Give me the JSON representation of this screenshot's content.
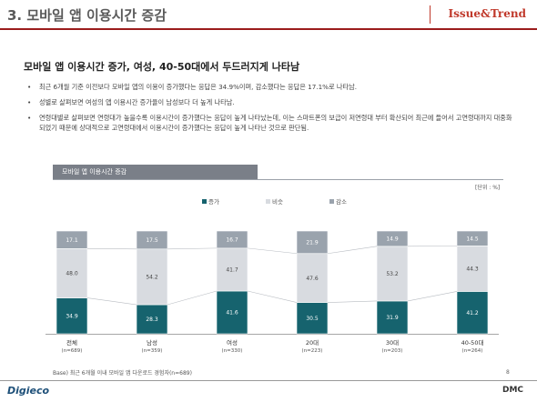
{
  "header": {
    "title": "3. 모바일 앱 이용시간 증감",
    "brand": "Issue&Trend"
  },
  "headline": "모바일 앱 이용시간 증가, 여성, 40-50대에서 두드러지게 나타남",
  "bullets": [
    "최근 6개월 기준 이전보다 모바일 앱의 이용이 증가했다는 응답은 34.9%이며, 감소했다는 응답은 17.1%로 나타남.",
    "성별로 살펴보면 여성의 앱 이용시간 증가율이 남성보다 더 높게 나타남.",
    "연령대별로 살펴보면 연령대가 높을수록 이용시간이 증가했다는 응답이 높게 나타났는데, 이는 스마트폰의 보급이 저연령대 부터 확산되어 최근에 들어서 고연령대까지 대중화되었기 때문에 상대적으로 고연령대에서 이용시간이 증가했다는 응답이 높게 나타난 것으로 판단됨."
  ],
  "chart_tab": "모바일 앱 이용시간 증감",
  "unit": "[단위 : %]",
  "footnote": "Base) 최근 6개월 이내 모바일 앱 다운로드 경험자(n=689)",
  "page_number": "8",
  "footer": {
    "left_logo": "Digieco",
    "right_logo": "DMC"
  },
  "colors": {
    "increase": "#16636e",
    "same": "#d8dbe0",
    "decrease": "#9aa3ad",
    "accent": "#9b1c1c"
  },
  "chart_data": {
    "type": "bar",
    "stacked": true,
    "categories": [
      "전체",
      "남성",
      "여성",
      "20대",
      "30대",
      "40-50대"
    ],
    "category_n": [
      "(n=689)",
      "(n=359)",
      "(n=330)",
      "(n=223)",
      "(n=203)",
      "(n=264)"
    ],
    "series": [
      {
        "name": "증가",
        "values": [
          34.9,
          28.3,
          41.6,
          30.5,
          31.9,
          41.2
        ]
      },
      {
        "name": "비슷",
        "values": [
          48.0,
          54.2,
          41.7,
          47.6,
          53.2,
          44.3
        ]
      },
      {
        "name": "감소",
        "values": [
          17.1,
          17.5,
          16.7,
          21.9,
          14.9,
          14.5
        ]
      }
    ],
    "legend_position": "top",
    "ylim": [
      0,
      100
    ]
  }
}
